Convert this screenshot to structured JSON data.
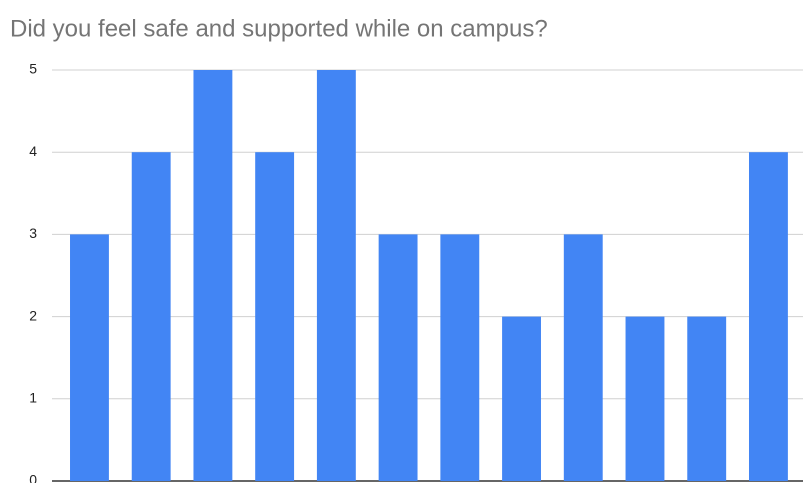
{
  "chart_data": {
    "type": "bar",
    "title": "Did you feel safe and supported while on campus?",
    "categories": [
      null,
      null,
      null,
      null,
      null,
      null,
      null,
      null,
      null,
      null,
      null,
      null
    ],
    "values": [
      3,
      4,
      5,
      4,
      5,
      3,
      3,
      2,
      3,
      2,
      2,
      4
    ],
    "color": "#4285f4",
    "ylim": [
      0,
      5
    ],
    "yticks": [
      0,
      1,
      2,
      3,
      4,
      5
    ],
    "grid": true
  }
}
